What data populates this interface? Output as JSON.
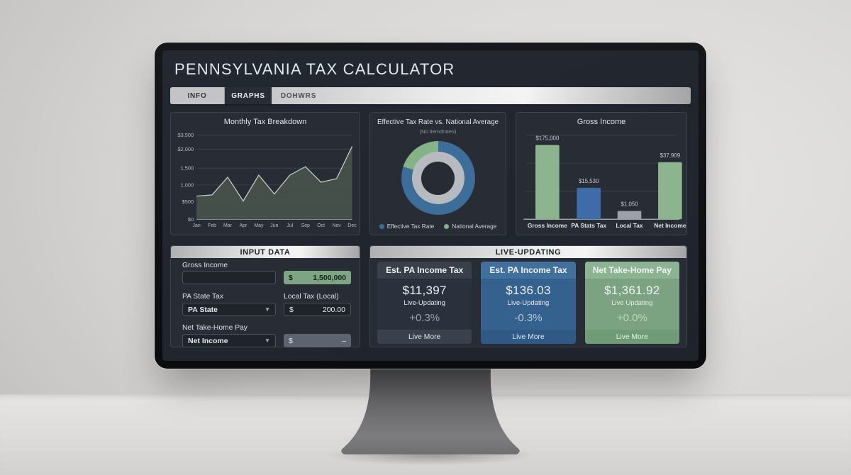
{
  "window": {
    "title": "PENNSYLVANIA TAX CALCULATOR"
  },
  "tabs": {
    "info": "INFO",
    "graphs": "GRAPHS",
    "dohwrs": "DOHWRS"
  },
  "charts": {
    "monthly": {
      "type": "area",
      "title": "Monthly Tax Breakdown",
      "y_ticks": [
        "$3,500",
        "$2,000",
        "1,500",
        "1,000",
        "$500",
        "$0"
      ],
      "months": [
        "Jan",
        "Feb",
        "Mar",
        "Apr",
        "May",
        "Jun",
        "Jul",
        "Sep",
        "Oct",
        "Nov",
        "Dec"
      ],
      "values": [
        690,
        725,
        1250,
        540,
        1310,
        750,
        1310,
        1565,
        1100,
        1210,
        2160
      ],
      "norm": [
        0.275,
        0.29,
        0.5,
        0.217,
        0.525,
        0.3,
        0.525,
        0.625,
        0.44,
        0.483,
        0.867
      ],
      "area_color": "#47534b",
      "line_color": "#c3ccc5"
    },
    "donut": {
      "type": "donut",
      "title": "Effective Tax Rate vs. National Average",
      "subtitle": "(No itemdrates)",
      "segments": [
        {
          "label": "Effective Tax Rate",
          "pct": 80,
          "color": "#3d6d99"
        },
        {
          "label": "National Average",
          "pct": 20,
          "color": "#85b388"
        }
      ],
      "inner_ring_color": "#b7bbc0"
    },
    "bars": {
      "type": "bar",
      "title": "Gross Income",
      "categories": [
        "Gross Income",
        "PA Stats Tax",
        "Local Tax",
        "Net Income"
      ],
      "value_labels": [
        "$175,000",
        "$15,530",
        "$1,050",
        "$37,909"
      ],
      "values": [
        175000,
        15530,
        1050,
        37909
      ],
      "norm": [
        0.99,
        0.42,
        0.11,
        0.76
      ],
      "colors": [
        "#8cb48e",
        "#3e6ca8",
        "#9aa1a9",
        "#8cb48e"
      ]
    }
  },
  "input_panel": {
    "header": "INPUT DATA",
    "gross_income": {
      "label": "Gross Income",
      "input_value": "",
      "currency": "$",
      "amount": "1,500,000"
    },
    "pa_state_tax": {
      "label": "PA State Tax",
      "selected": "PA State"
    },
    "local_tax": {
      "label": "Local Tax (Local)",
      "currency": "$",
      "amount": "200.00"
    },
    "net_take_home": {
      "label": "Net Take-Home Pay",
      "selected": "Net Income",
      "currency": "$",
      "amount": "–"
    }
  },
  "live_panel": {
    "header": "LIVE-UPDATING",
    "cards": [
      {
        "title": "Est. PA Income Tax",
        "value": "$11,397",
        "subtitle": "Live-Updating",
        "delta": "+0.3%",
        "footer": "Live More",
        "theme": "dark"
      },
      {
        "title": "Est. PA Income Tax",
        "value": "$136.03",
        "subtitle": "Live-Updating",
        "delta": "-0.3%",
        "footer": "Live More",
        "theme": "blue"
      },
      {
        "title": "Net Take-Home Pay",
        "value": "$1,361.92",
        "subtitle": "Live Updating",
        "delta": "+0.0%",
        "footer": "Live More",
        "theme": "green"
      }
    ]
  }
}
